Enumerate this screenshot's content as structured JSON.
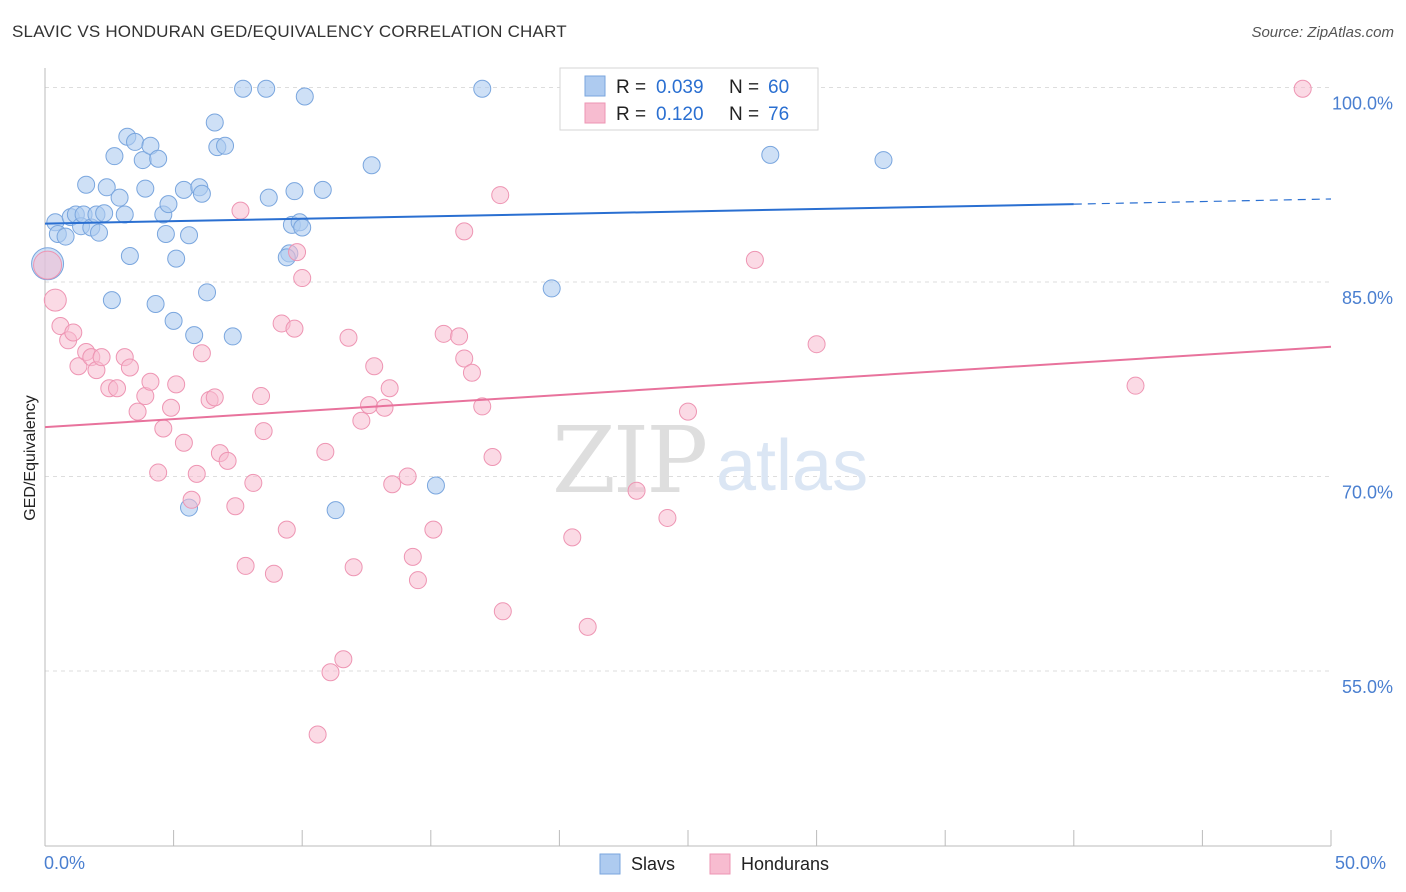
{
  "title": "SLAVIC VS HONDURAN GED/EQUIVALENCY CORRELATION CHART",
  "source": "Source: ZipAtlas.com",
  "watermark": {
    "zip": "ZIP",
    "atlas": "atlas"
  },
  "legend": {
    "r_label": "R =",
    "n_label": "N =",
    "items": [
      {
        "r": "0.039",
        "n": "60"
      },
      {
        "r": "0.120",
        "n": "76"
      }
    ]
  },
  "bottom_legend": [
    "Slavs",
    "Hondurans"
  ],
  "colors": {
    "slavs_fill": "#aecbf0",
    "slavs_stroke": "#7aa6de",
    "slavs_line": "#2a6fd1",
    "hond_fill": "#f7bcd0",
    "hond_stroke": "#ee95b3",
    "hond_line": "#e8729c",
    "tick_text": "#4a7fd0",
    "grid": "#dddddd"
  },
  "chart_data": {
    "type": "scatter",
    "title": "SLAVIC VS HONDURAN GED/EQUIVALENCY CORRELATION CHART",
    "xlabel": "",
    "ylabel": "GED/Equivalency",
    "xlim": [
      0,
      50
    ],
    "ylim": [
      41.5,
      101.5
    ],
    "x_tick_labels": [
      "0.0%",
      "50.0%"
    ],
    "y_ticks": [
      55,
      70,
      85,
      100
    ],
    "y_tick_labels": [
      "55.0%",
      "70.0%",
      "85.0%",
      "100.0%"
    ],
    "grid": true,
    "legend_position": "top-center",
    "series": [
      {
        "name": "Slavs",
        "R": 0.039,
        "N": 60,
        "trend": {
          "x": [
            0,
            40
          ],
          "y": [
            89.5,
            91.0
          ],
          "dashed_extension": {
            "x": [
              40,
              50
            ],
            "y": [
              91.0,
              91.4
            ]
          }
        },
        "points": [
          [
            0.1,
            86.4
          ],
          [
            0.4,
            89.6
          ],
          [
            0.5,
            88.7
          ],
          [
            0.8,
            88.5
          ],
          [
            1.0,
            90.0
          ],
          [
            1.2,
            90.2
          ],
          [
            1.4,
            89.3
          ],
          [
            1.5,
            90.2
          ],
          [
            1.6,
            92.5
          ],
          [
            1.8,
            89.2
          ],
          [
            2.0,
            90.2
          ],
          [
            2.1,
            88.8
          ],
          [
            2.3,
            90.3
          ],
          [
            2.4,
            92.3
          ],
          [
            2.6,
            83.6
          ],
          [
            2.7,
            94.7
          ],
          [
            2.9,
            91.5
          ],
          [
            3.1,
            90.2
          ],
          [
            3.2,
            96.2
          ],
          [
            3.3,
            87.0
          ],
          [
            3.5,
            95.8
          ],
          [
            3.8,
            94.4
          ],
          [
            3.9,
            92.2
          ],
          [
            4.1,
            95.5
          ],
          [
            4.3,
            83.3
          ],
          [
            4.4,
            94.5
          ],
          [
            4.6,
            90.2
          ],
          [
            4.7,
            88.7
          ],
          [
            4.8,
            91.0
          ],
          [
            5.1,
            86.8
          ],
          [
            5.0,
            82.0
          ],
          [
            5.4,
            92.1
          ],
          [
            5.6,
            88.6
          ],
          [
            5.8,
            80.9
          ],
          [
            6.0,
            92.3
          ],
          [
            6.1,
            91.8
          ],
          [
            6.3,
            84.2
          ],
          [
            6.6,
            97.3
          ],
          [
            6.7,
            95.4
          ],
          [
            7.0,
            95.5
          ],
          [
            7.3,
            80.8
          ],
          [
            7.7,
            99.9
          ],
          [
            8.6,
            99.9
          ],
          [
            8.7,
            91.5
          ],
          [
            9.5,
            87.2
          ],
          [
            9.6,
            89.4
          ],
          [
            9.7,
            92.0
          ],
          [
            9.9,
            89.6
          ],
          [
            10.0,
            89.2
          ],
          [
            10.1,
            99.3
          ],
          [
            10.8,
            92.1
          ],
          [
            11.3,
            67.4
          ],
          [
            12.7,
            94.0
          ],
          [
            15.2,
            69.3
          ],
          [
            17.0,
            99.9
          ],
          [
            19.7,
            84.5
          ],
          [
            28.2,
            94.8
          ],
          [
            32.6,
            94.4
          ],
          [
            5.6,
            67.6
          ],
          [
            9.4,
            86.9
          ]
        ]
      },
      {
        "name": "Hondurans",
        "R": 0.12,
        "N": 76,
        "trend": {
          "x": [
            0,
            50
          ],
          "y": [
            73.8,
            80.0
          ]
        },
        "points": [
          [
            0.1,
            86.3
          ],
          [
            0.4,
            83.6
          ],
          [
            0.6,
            81.6
          ],
          [
            0.9,
            80.5
          ],
          [
            1.1,
            81.1
          ],
          [
            1.3,
            78.5
          ],
          [
            1.6,
            79.6
          ],
          [
            1.8,
            79.2
          ],
          [
            2.0,
            78.2
          ],
          [
            2.2,
            79.2
          ],
          [
            2.5,
            76.8
          ],
          [
            2.8,
            76.8
          ],
          [
            3.1,
            79.2
          ],
          [
            3.3,
            78.4
          ],
          [
            3.6,
            75.0
          ],
          [
            3.9,
            76.2
          ],
          [
            4.1,
            77.3
          ],
          [
            4.4,
            70.3
          ],
          [
            4.6,
            73.7
          ],
          [
            4.9,
            75.3
          ],
          [
            5.1,
            77.1
          ],
          [
            5.4,
            72.6
          ],
          [
            5.7,
            68.2
          ],
          [
            5.9,
            70.2
          ],
          [
            6.1,
            79.5
          ],
          [
            6.4,
            75.9
          ],
          [
            6.6,
            76.1
          ],
          [
            6.8,
            71.8
          ],
          [
            7.1,
            71.2
          ],
          [
            7.4,
            67.7
          ],
          [
            7.6,
            90.5
          ],
          [
            7.8,
            63.1
          ],
          [
            8.1,
            69.5
          ],
          [
            8.4,
            76.2
          ],
          [
            8.5,
            73.5
          ],
          [
            8.9,
            62.5
          ],
          [
            9.2,
            81.8
          ],
          [
            9.4,
            65.9
          ],
          [
            9.7,
            81.4
          ],
          [
            9.8,
            87.3
          ],
          [
            10.0,
            85.3
          ],
          [
            10.6,
            50.1
          ],
          [
            10.9,
            71.9
          ],
          [
            11.1,
            54.9
          ],
          [
            11.6,
            55.9
          ],
          [
            11.8,
            80.7
          ],
          [
            12.0,
            63.0
          ],
          [
            12.3,
            74.3
          ],
          [
            12.6,
            75.5
          ],
          [
            12.8,
            78.5
          ],
          [
            13.2,
            75.3
          ],
          [
            13.4,
            76.8
          ],
          [
            13.5,
            69.4
          ],
          [
            14.1,
            70.0
          ],
          [
            14.3,
            63.8
          ],
          [
            14.5,
            62.0
          ],
          [
            15.1,
            65.9
          ],
          [
            15.5,
            81.0
          ],
          [
            16.1,
            80.8
          ],
          [
            16.3,
            88.9
          ],
          [
            16.3,
            79.1
          ],
          [
            16.6,
            78.0
          ],
          [
            17.0,
            75.4
          ],
          [
            17.4,
            71.5
          ],
          [
            17.7,
            91.7
          ],
          [
            17.8,
            59.6
          ],
          [
            20.5,
            65.3
          ],
          [
            21.1,
            58.4
          ],
          [
            23.0,
            68.9
          ],
          [
            24.2,
            66.8
          ],
          [
            25.0,
            75.0
          ],
          [
            27.6,
            86.7
          ],
          [
            28.6,
            99.9
          ],
          [
            30.0,
            80.2
          ],
          [
            42.4,
            77.0
          ],
          [
            48.9,
            99.9
          ]
        ]
      }
    ]
  }
}
